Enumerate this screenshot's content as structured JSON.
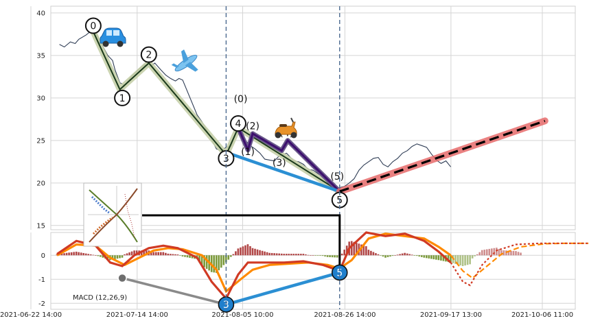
{
  "chart_data": [
    {
      "type": "line",
      "panel": "price",
      "ylim": [
        14.5,
        40.8
      ],
      "yticks": [
        15,
        20,
        25,
        30,
        35,
        40
      ],
      "grid": true,
      "price_line": [
        [
          "2021-06-28 12:00",
          36.3
        ],
        [
          "2021-06-29 12:00",
          36.0
        ],
        [
          "2021-06-30 18:00",
          36.6
        ],
        [
          "2021-07-01 18:00",
          36.4
        ],
        [
          "2021-07-02 12:00",
          36.9
        ],
        [
          "2021-07-04 00:00",
          37.4
        ],
        [
          "2021-07-05 12:00",
          38.1
        ],
        [
          "2021-07-07 00:00",
          36.6
        ],
        [
          "2021-07-08 12:00",
          35.0
        ],
        [
          "2021-07-09 12:00",
          34.4
        ],
        [
          "2021-07-10 00:00",
          33.3
        ],
        [
          "2021-07-11 00:00",
          31.8
        ],
        [
          "2021-07-12 00:00",
          31.5
        ],
        [
          "2021-07-13 12:00",
          32.6
        ],
        [
          "2021-07-15 00:00",
          33.4
        ],
        [
          "2021-07-16 00:00",
          33.9
        ],
        [
          "2021-07-17 06:00",
          33.7
        ],
        [
          "2021-07-18 06:00",
          34.1
        ],
        [
          "2021-07-19 12:00",
          33.3
        ],
        [
          "2021-07-20 12:00",
          32.7
        ],
        [
          "2021-07-21 12:00",
          32.3
        ],
        [
          "2021-07-22 12:00",
          32.0
        ],
        [
          "2021-07-23 06:00",
          32.3
        ],
        [
          "2021-07-24 00:00",
          32.1
        ],
        [
          "2021-07-27 00:00",
          28.0
        ],
        [
          "2021-07-28 00:00",
          27.2
        ],
        [
          "2021-07-29 00:00",
          26.2
        ],
        [
          "2021-07-31 00:00",
          24.0
        ],
        [
          "2021-08-01 00:00",
          23.8
        ],
        [
          "2021-08-02 00:00",
          24.2
        ],
        [
          "2021-08-03 00:00",
          24.3
        ],
        [
          "2021-08-04 00:00",
          25.8
        ],
        [
          "2021-08-05 00:00",
          26.5
        ],
        [
          "2021-08-06 00:00",
          25.0
        ],
        [
          "2021-08-07 00:00",
          24.4
        ],
        [
          "2021-08-08 00:00",
          24.0
        ],
        [
          "2021-08-09 00:00",
          23.5
        ],
        [
          "2021-08-10 00:00",
          22.8
        ],
        [
          "2021-08-11 00:00",
          22.7
        ],
        [
          "2021-08-12 00:00",
          22.6
        ],
        [
          "2021-08-13 00:00",
          23.2
        ],
        [
          "2021-08-14 12:00",
          23.5
        ],
        [
          "2021-08-16 00:00",
          22.6
        ],
        [
          "2021-08-17 00:00",
          22.5
        ],
        [
          "2021-08-18 00:00",
          22.2
        ],
        [
          "2021-08-19 00:00",
          21.6
        ],
        [
          "2021-08-20 00:00",
          21.5
        ],
        [
          "2021-08-21 12:00",
          20.9
        ],
        [
          "2021-08-23 00:00",
          20.1
        ],
        [
          "2021-08-24 00:00",
          19.8
        ],
        [
          "2021-08-25 00:00",
          19.4
        ],
        [
          "2021-08-26 12:00",
          19.6
        ],
        [
          "2021-08-27 12:00",
          20.0
        ],
        [
          "2021-08-28 12:00",
          20.5
        ],
        [
          "2021-08-29 12:00",
          21.5
        ],
        [
          "2021-08-30 12:00",
          22.1
        ],
        [
          "2021-08-31 12:00",
          22.5
        ],
        [
          "2021-09-01 12:00",
          22.9
        ],
        [
          "2021-09-02 12:00",
          23.0
        ],
        [
          "2021-09-03 12:00",
          22.2
        ],
        [
          "2021-09-04 12:00",
          21.9
        ],
        [
          "2021-09-05 12:00",
          22.5
        ],
        [
          "2021-09-06 12:00",
          22.9
        ],
        [
          "2021-09-07 12:00",
          23.5
        ],
        [
          "2021-09-08 12:00",
          23.8
        ],
        [
          "2021-09-09 12:00",
          24.3
        ],
        [
          "2021-09-10 12:00",
          24.6
        ],
        [
          "2021-09-11 12:00",
          24.4
        ],
        [
          "2021-09-12 12:00",
          24.2
        ],
        [
          "2021-09-13 12:00",
          23.4
        ],
        [
          "2021-09-14 12:00",
          22.7
        ],
        [
          "2021-09-15 12:00",
          22.3
        ],
        [
          "2021-09-16 12:00",
          22.6
        ],
        [
          "2021-09-17 12:00",
          21.9
        ]
      ],
      "zigzag": [
        [
          "2021-07-05 12:00",
          37.8
        ],
        [
          "2021-07-11 00:00",
          31.0
        ],
        [
          "2021-07-17 00:00",
          34.1
        ],
        [
          "2021-08-02 00:00",
          23.3
        ],
        [
          "2021-08-04 12:00",
          26.5
        ],
        [
          "2021-08-25 12:00",
          19.0
        ]
      ],
      "sub_wave": [
        [
          "2021-08-04 12:00",
          26.5
        ],
        [
          "2021-08-06 12:00",
          23.9
        ],
        [
          "2021-08-07 12:00",
          25.8
        ],
        [
          "2021-08-13 12:00",
          23.8
        ],
        [
          "2021-08-14 18:00",
          25.0
        ],
        [
          "2021-08-25 12:00",
          19.0
        ]
      ],
      "projection": [
        [
          "2021-08-25 12:00",
          19.0
        ],
        [
          "2021-10-07 00:00",
          27.3
        ]
      ],
      "diagonal": [
        [
          "2021-08-02 00:00",
          23.6
        ],
        [
          "2021-08-25 12:00",
          19.0
        ]
      ],
      "vlines": [
        "2021-08-02 00:00",
        "2021-08-25 12:00"
      ],
      "wave_labels": [
        {
          "text": "0",
          "x": "2021-07-05 12:00",
          "y": 38.5
        },
        {
          "text": "1",
          "x": "2021-07-11 12:00",
          "y": 30.0
        },
        {
          "text": "2",
          "x": "2021-07-17 00:00",
          "y": 35.1
        },
        {
          "text": "3",
          "x": "2021-08-02 00:00",
          "y": 22.9
        },
        {
          "text": "4",
          "x": "2021-08-04 12:00",
          "y": 27.0
        },
        {
          "text": "5",
          "x": "2021-08-25 12:00",
          "y": 18.0
        }
      ],
      "sub_labels": [
        {
          "text": "(0)",
          "x": "2021-08-05 00:00",
          "y": 29.5
        },
        {
          "text": "(1)",
          "x": "2021-08-06 12:00",
          "y": 23.3
        },
        {
          "text": "(2)",
          "x": "2021-08-07 12:00",
          "y": 26.3
        },
        {
          "text": "(3)",
          "x": "2021-08-13 00:00",
          "y": 22.0
        },
        {
          "text": "(4)",
          "x": "2021-08-14 12:00",
          "y": 25.5
        },
        {
          "text": "(5)",
          "x": "2021-08-25 00:00",
          "y": 20.4
        }
      ]
    },
    {
      "type": "line",
      "panel": "macd",
      "label": "MACD (12,26,9)",
      "ylim": [
        -2.25,
        0.95
      ],
      "yticks": [
        -2,
        -1,
        0
      ],
      "x_ticks": [
        "2021-06-22 14:00",
        "2021-07-14 14:00",
        "2021-08-05 10:00",
        "2021-08-26 14:00",
        "2021-09-17 13:00",
        "2021-10-06 11:00"
      ],
      "macd": [
        [
          "2021-06-28 00:00",
          0.05
        ],
        [
          "2021-07-02 00:00",
          0.6
        ],
        [
          "2021-07-06 00:00",
          0.4
        ],
        [
          "2021-07-09 00:00",
          -0.3
        ],
        [
          "2021-07-11 12:00",
          -0.45
        ],
        [
          "2021-07-14 00:00",
          0.0
        ],
        [
          "2021-07-17 00:00",
          0.3
        ],
        [
          "2021-07-20 00:00",
          0.4
        ],
        [
          "2021-07-23 00:00",
          0.3
        ],
        [
          "2021-07-27 00:00",
          -0.1
        ],
        [
          "2021-07-30 00:00",
          -1.1
        ],
        [
          "2021-08-02 00:00",
          -1.8
        ],
        [
          "2021-08-04 12:00",
          -0.8
        ],
        [
          "2021-08-06 12:00",
          -0.3
        ],
        [
          "2021-08-10 00:00",
          -0.3
        ],
        [
          "2021-08-14 00:00",
          -0.3
        ],
        [
          "2021-08-18 00:00",
          -0.25
        ],
        [
          "2021-08-22 00:00",
          -0.4
        ],
        [
          "2021-08-25 12:00",
          -0.65
        ],
        [
          "2021-08-27 12:00",
          0.3
        ],
        [
          "2021-08-31 00:00",
          0.95
        ],
        [
          "2021-09-04 00:00",
          0.8
        ],
        [
          "2021-09-08 00:00",
          0.9
        ],
        [
          "2021-09-12 00:00",
          0.6
        ],
        [
          "2021-09-15 00:00",
          0.15
        ],
        [
          "2021-09-17 12:00",
          -0.3
        ]
      ],
      "signal": [
        [
          "2021-06-28 00:00",
          0.0
        ],
        [
          "2021-07-02 00:00",
          0.45
        ],
        [
          "2021-07-06 00:00",
          0.4
        ],
        [
          "2021-07-09 00:00",
          -0.1
        ],
        [
          "2021-07-12 00:00",
          -0.4
        ],
        [
          "2021-07-15 00:00",
          -0.1
        ],
        [
          "2021-07-18 00:00",
          0.2
        ],
        [
          "2021-07-21 00:00",
          0.3
        ],
        [
          "2021-07-24 00:00",
          0.25
        ],
        [
          "2021-07-28 00:00",
          0.0
        ],
        [
          "2021-07-31 00:00",
          -0.6
        ],
        [
          "2021-08-02 00:00",
          -1.5
        ],
        [
          "2021-08-05 00:00",
          -1.0
        ],
        [
          "2021-08-07 12:00",
          -0.6
        ],
        [
          "2021-08-11 00:00",
          -0.4
        ],
        [
          "2021-08-15 00:00",
          -0.35
        ],
        [
          "2021-08-19 00:00",
          -0.3
        ],
        [
          "2021-08-23 00:00",
          -0.4
        ],
        [
          "2021-08-25 12:00",
          -0.55
        ],
        [
          "2021-08-28 00:00",
          -0.2
        ],
        [
          "2021-08-31 12:00",
          0.7
        ],
        [
          "2021-09-04 00:00",
          0.9
        ],
        [
          "2021-09-08 00:00",
          0.8
        ],
        [
          "2021-09-12 00:00",
          0.7
        ],
        [
          "2021-09-15 00:00",
          0.35
        ],
        [
          "2021-09-17 12:00",
          0.0
        ]
      ],
      "macd_forecast": [
        [
          "2021-09-17 12:00",
          -0.3
        ],
        [
          "2021-09-20 00:00",
          -1.1
        ],
        [
          "2021-09-21 12:00",
          -1.25
        ],
        [
          "2021-09-24 00:00",
          -0.4
        ],
        [
          "2021-09-27 00:00",
          0.2
        ],
        [
          "2021-10-01 00:00",
          0.45
        ],
        [
          "2021-10-06 00:00",
          0.5
        ],
        [
          "2021-10-11 00:00",
          0.5
        ],
        [
          "2021-10-16 00:00",
          0.5
        ]
      ],
      "signal_forecast": [
        [
          "2021-09-17 12:00",
          0.0
        ],
        [
          "2021-09-20 00:00",
          -0.65
        ],
        [
          "2021-09-22 00:00",
          -0.95
        ],
        [
          "2021-09-25 00:00",
          -0.45
        ],
        [
          "2021-09-28 00:00",
          0.05
        ],
        [
          "2021-10-02 00:00",
          0.35
        ],
        [
          "2021-10-07 00:00",
          0.48
        ],
        [
          "2021-10-11 00:00",
          0.5
        ],
        [
          "2021-10-16 00:00",
          0.5
        ]
      ],
      "macd_markers": [
        {
          "x": "2021-07-11 12:00",
          "y": -0.95,
          "label": ""
        },
        {
          "x": "2021-08-02 00:00",
          "y": -2.05,
          "label": "3"
        },
        {
          "x": "2021-08-25 12:00",
          "y": -0.72,
          "label": "5"
        }
      ]
    }
  ],
  "colors": {
    "price": "#2f3d55",
    "zigzag": "#1a3a1a",
    "zigzag_halo": "#c5cfa8",
    "sub_wave": "#3d0f6e",
    "sub_halo": "#6a5a8a",
    "projection": "#000000",
    "projection_halo": "#e66b6b",
    "diagonal": "#2b8fd3",
    "vline": "#4c6a90",
    "marker_blue": "#1f7fcc",
    "marker_gray": "#6e6e6e",
    "macd": "#d03a24",
    "signal": "#ff8a00",
    "hist_pos": "#a83232",
    "hist_neg": "#6b8e23",
    "grid": "#d4d4d4"
  },
  "icons": [
    "car-icon",
    "airplane-icon",
    "scooter-icon",
    "thumbnail-chart-icon"
  ]
}
